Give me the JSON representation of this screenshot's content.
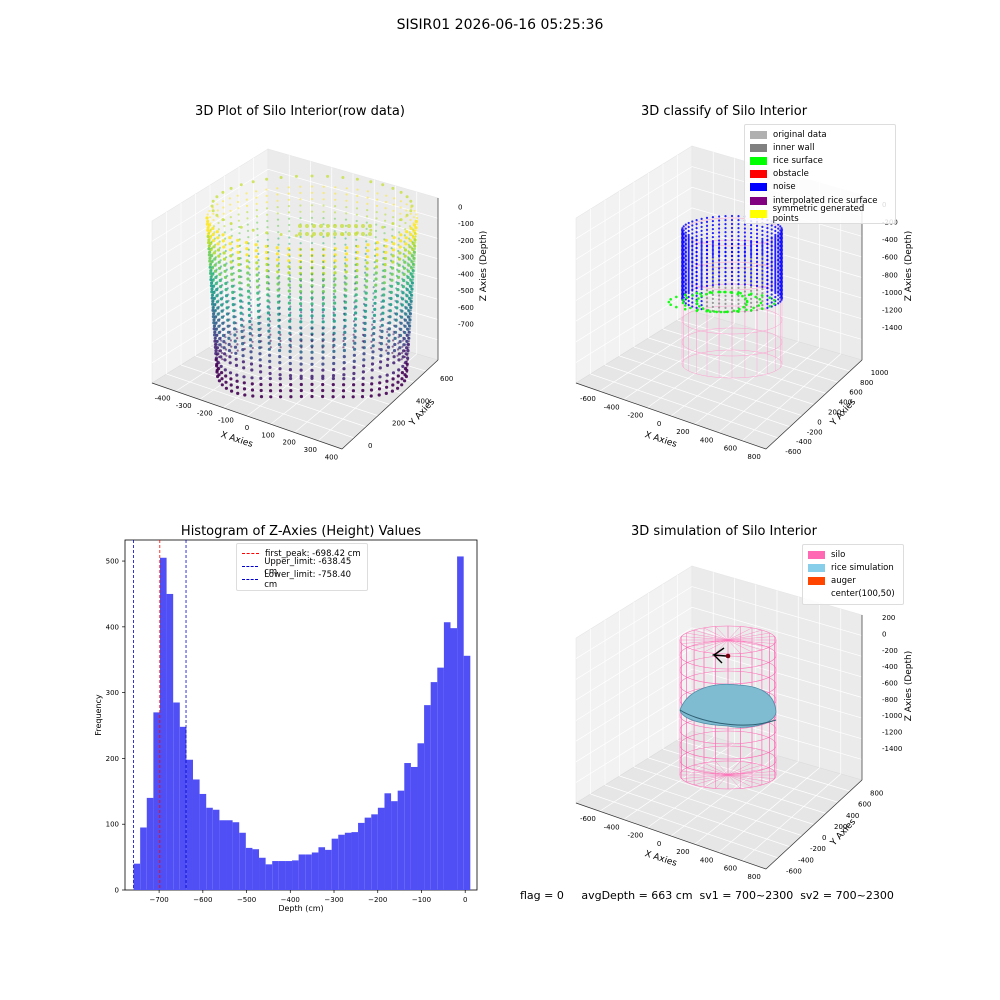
{
  "figure": {
    "suptitle": "SISIR01 2026-06-16 05:25:36",
    "footer": "flag = 0     avgDepth = 663 cm  sv1 = 700~2300  sv2 = 700~2300"
  },
  "colors": {
    "hist_bar": "#4f4ff5",
    "first_peak": "#ff0000",
    "limits": "#0000cc",
    "silo": "#ff69b4",
    "rice_simulation": "#87ceeb",
    "auger": "#ff4500",
    "noise": "#0000ff",
    "rice_surface": "#00ff00",
    "inner_wall": "#808080",
    "original_data": "#b0b0b0",
    "obstacle": "#ff0000",
    "interpolated": "#800080",
    "symmetric": "#ffff00"
  },
  "panels": {
    "raw": {
      "title": "3D Plot of Silo Interior(row data)",
      "xlabel": "X Axies",
      "ylabel": "Y Axies",
      "zlabel": "Z Axies (Depth)",
      "xticks": [
        "-400",
        "-300",
        "-200",
        "-100",
        "0",
        "100",
        "200",
        "300",
        "400"
      ],
      "yticks": [
        "0",
        "200",
        "400",
        "600"
      ],
      "zticks": [
        "0",
        "-100",
        "-200",
        "-300",
        "-400",
        "-500",
        "-600",
        "-700"
      ]
    },
    "classify": {
      "title": "3D classify of Silo Interior",
      "xlabel": "X Axies",
      "ylabel": "Y Axies",
      "zlabel": "Z Axies (Depth)",
      "xticks": [
        "-600",
        "-400",
        "-200",
        "0",
        "200",
        "400",
        "600",
        "800"
      ],
      "yticks": [
        "-600",
        "-400",
        "-200",
        "0",
        "200",
        "400",
        "600",
        "800",
        "1000"
      ],
      "zticks": [
        "0",
        "-200",
        "-400",
        "-600",
        "-800",
        "-1000",
        "-1200",
        "-1400"
      ],
      "legend": [
        "original data",
        "inner wall",
        "rice surface",
        "obstacle",
        "noise",
        "interpolated rice surface",
        "symmetric generated points"
      ]
    },
    "simulation": {
      "title": "3D simulation of Silo Interior",
      "xlabel": "X Axies",
      "ylabel": "Y Axies",
      "zlabel": "Z Axies (Depth)",
      "xticks": [
        "-600",
        "-400",
        "-200",
        "0",
        "200",
        "400",
        "600",
        "800"
      ],
      "yticks": [
        "-600",
        "-400",
        "-200",
        "0",
        "200",
        "400",
        "600",
        "800"
      ],
      "zticks": [
        "200",
        "0",
        "-200",
        "-400",
        "-600",
        "-800",
        "-1000",
        "-1200",
        "-1400"
      ],
      "legend": [
        "silo",
        "rice simulation",
        "auger",
        "center(100,50)"
      ]
    }
  },
  "chart_data": [
    {
      "type": "bar",
      "title": "Histogram of Z-Axies (Height) Values",
      "xlabel": "Depth (cm)",
      "ylabel": "Frequency",
      "xlim": [
        -778,
        27
      ],
      "ylim": [
        0,
        532
      ],
      "xticks": [
        -700,
        -600,
        -500,
        -400,
        -300,
        -200,
        -100,
        0
      ],
      "yticks": [
        0,
        100,
        200,
        300,
        400,
        500
      ],
      "bin_start": -758.4,
      "bin_width": 15.1,
      "values": [
        40,
        95,
        140,
        270,
        505,
        450,
        285,
        248,
        198,
        168,
        146,
        125,
        122,
        106,
        106,
        103,
        87,
        64,
        62,
        49,
        39,
        44,
        44,
        44,
        45,
        54,
        54,
        57,
        65,
        61,
        78,
        84,
        87,
        88,
        102,
        110,
        115,
        125,
        147,
        135,
        151,
        193,
        187,
        223,
        281,
        316,
        338,
        407,
        398,
        507,
        356
      ],
      "lines": [
        {
          "label": "first_peak: -698.42 cm",
          "x": -698.42,
          "color": "#ff0000"
        },
        {
          "label": "Upper_limit: -638.45 cm",
          "x": -638.45,
          "color": "#0000cc"
        },
        {
          "label": "Lower_limit: -758.40 cm",
          "x": -758.4,
          "color": "#0000cc"
        }
      ],
      "legend_position": "top-center"
    }
  ]
}
